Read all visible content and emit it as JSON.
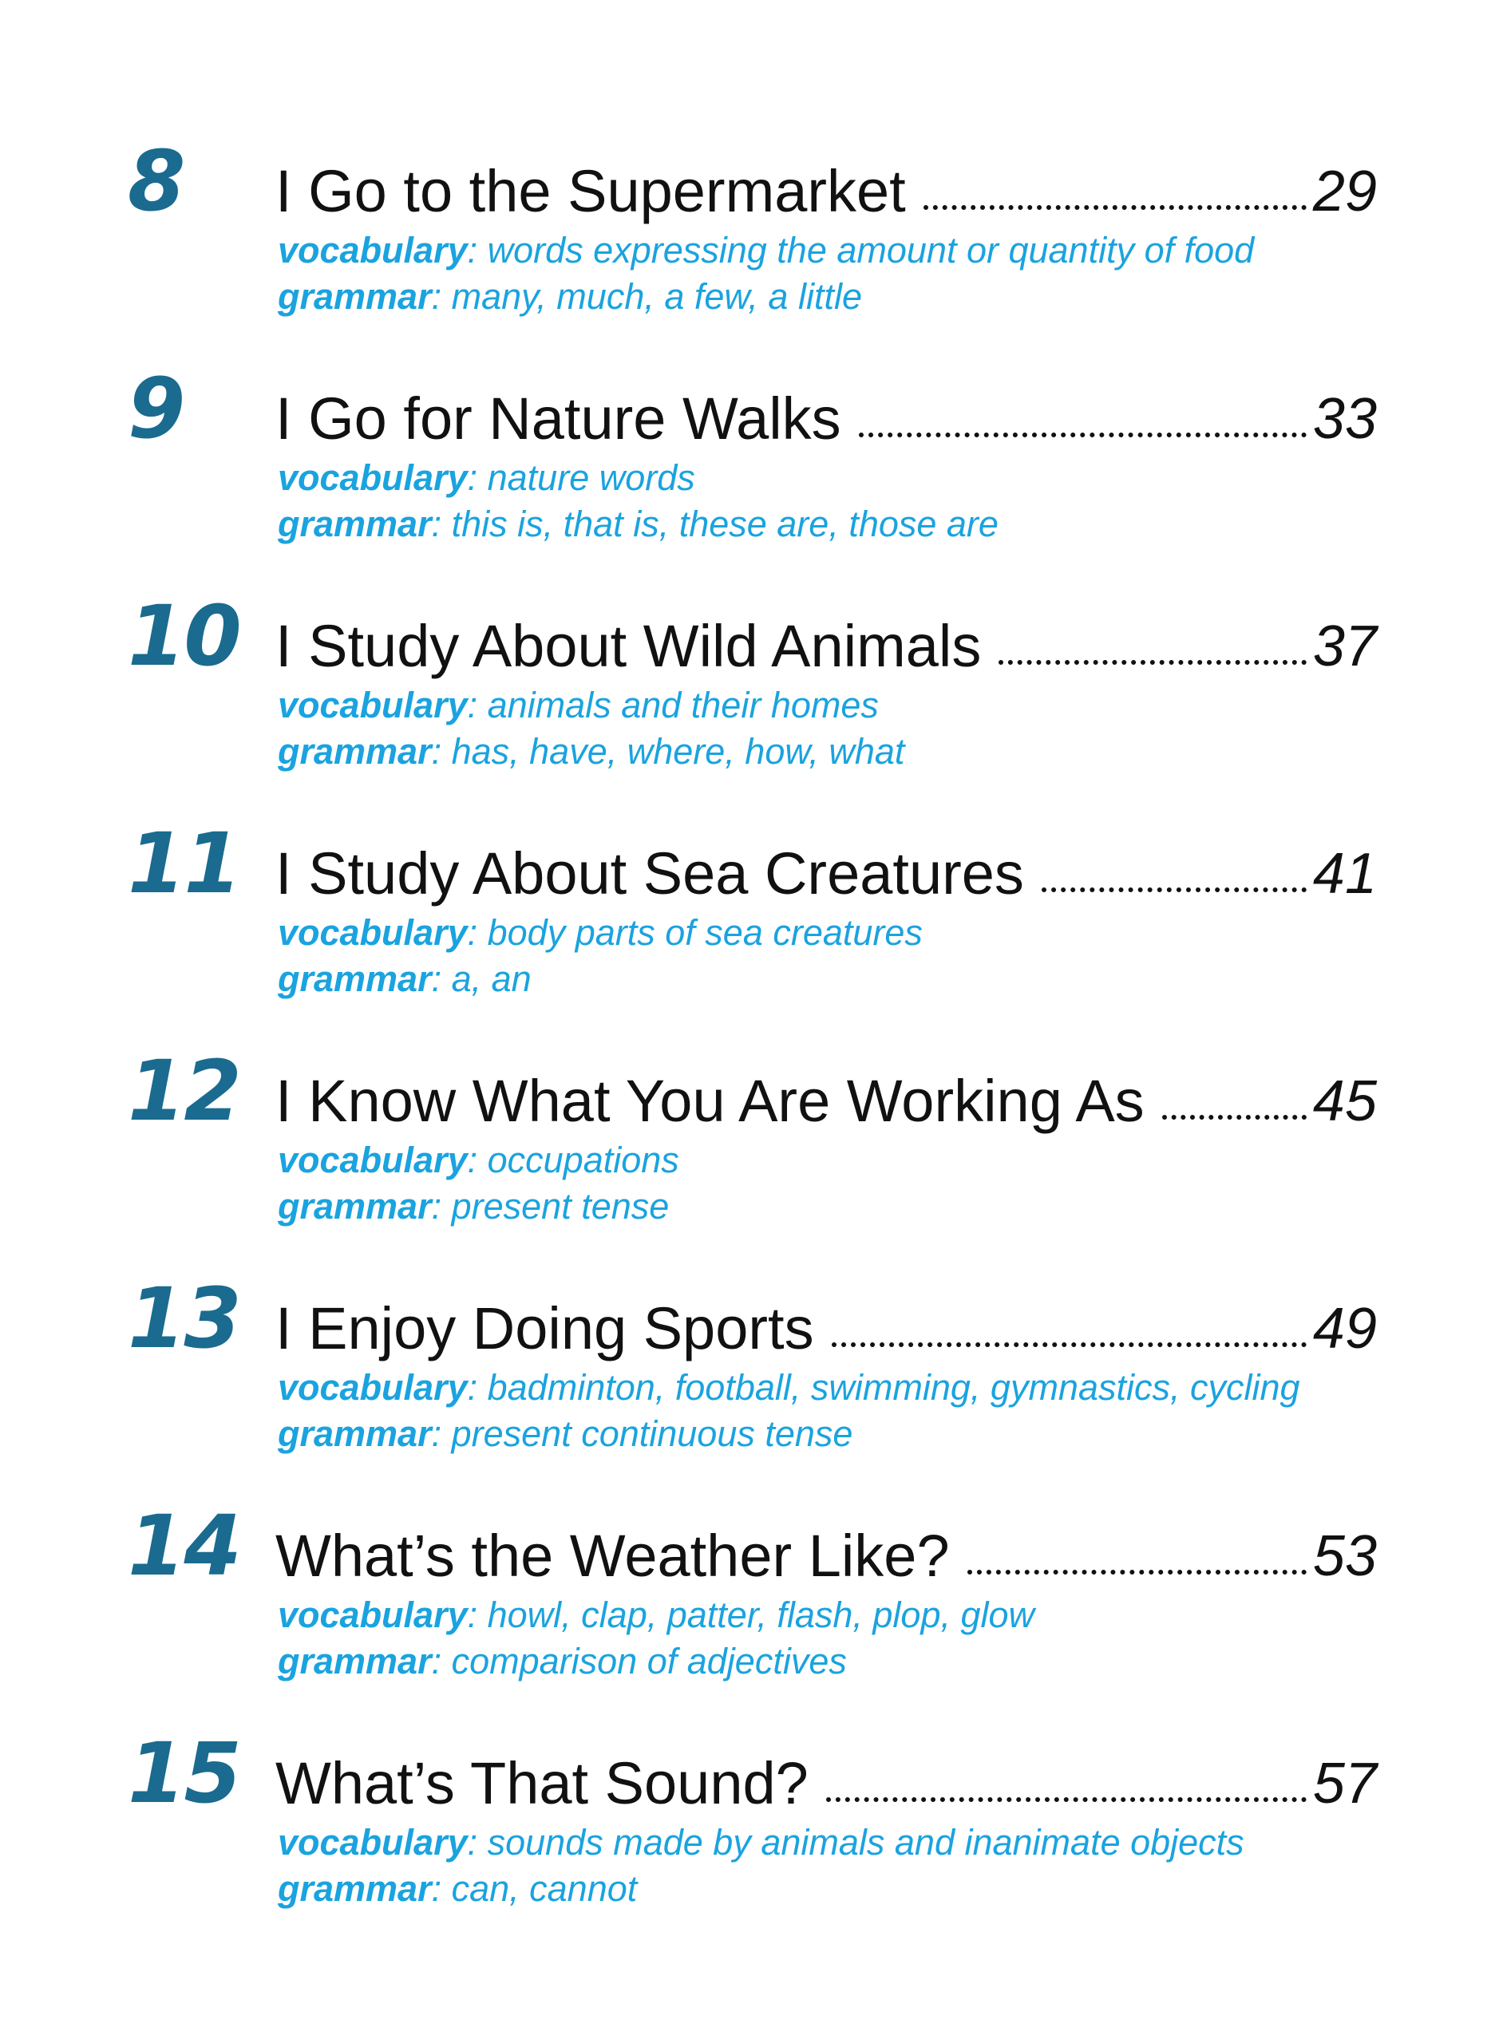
{
  "entries": [
    {
      "number": "8",
      "title": "I Go to the Supermarket",
      "page": "29",
      "vocabulary_label": "vocabulary",
      "vocabulary": ": words expressing the amount or quantity of food",
      "grammar_label": "grammar",
      "grammar": ": many, much, a few, a little"
    },
    {
      "number": "9",
      "title": "I Go for Nature Walks",
      "page": "33",
      "vocabulary_label": "vocabulary",
      "vocabulary": ": nature words",
      "grammar_label": "grammar",
      "grammar": ": this is, that is, these are, those are"
    },
    {
      "number": "10",
      "title": "I Study About Wild Animals",
      "page": "37",
      "vocabulary_label": "vocabulary",
      "vocabulary": ": animals and their homes",
      "grammar_label": "grammar",
      "grammar": ": has, have, where, how, what"
    },
    {
      "number": "11",
      "title": "I Study About Sea Creatures",
      "page": "41",
      "vocabulary_label": "vocabulary",
      "vocabulary": ": body parts of sea creatures",
      "grammar_label": "grammar",
      "grammar": ": a, an"
    },
    {
      "number": "12",
      "title": "I Know What You Are Working As",
      "page": "45",
      "vocabulary_label": "vocabulary",
      "vocabulary": ": occupations",
      "grammar_label": "grammar",
      "grammar": ": present tense"
    },
    {
      "number": "13",
      "title": "I Enjoy Doing Sports",
      "page": "49",
      "vocabulary_label": "vocabulary",
      "vocabulary": ": badminton, football, swimming, gymnastics, cycling",
      "grammar_label": "grammar",
      "grammar": ": present continuous tense"
    },
    {
      "number": "14",
      "title": "What’s the Weather Like?",
      "page": "53",
      "vocabulary_label": "vocabulary",
      "vocabulary": ": howl, clap, patter, flash, plop, glow",
      "grammar_label": "grammar",
      "grammar": ": comparison of adjectives"
    },
    {
      "number": "15",
      "title": "What’s That Sound?",
      "page": "57",
      "vocabulary_label": "vocabulary",
      "vocabulary": ": sounds made by animals and inanimate objects",
      "grammar_label": "grammar",
      "grammar": ": can, cannot"
    }
  ]
}
